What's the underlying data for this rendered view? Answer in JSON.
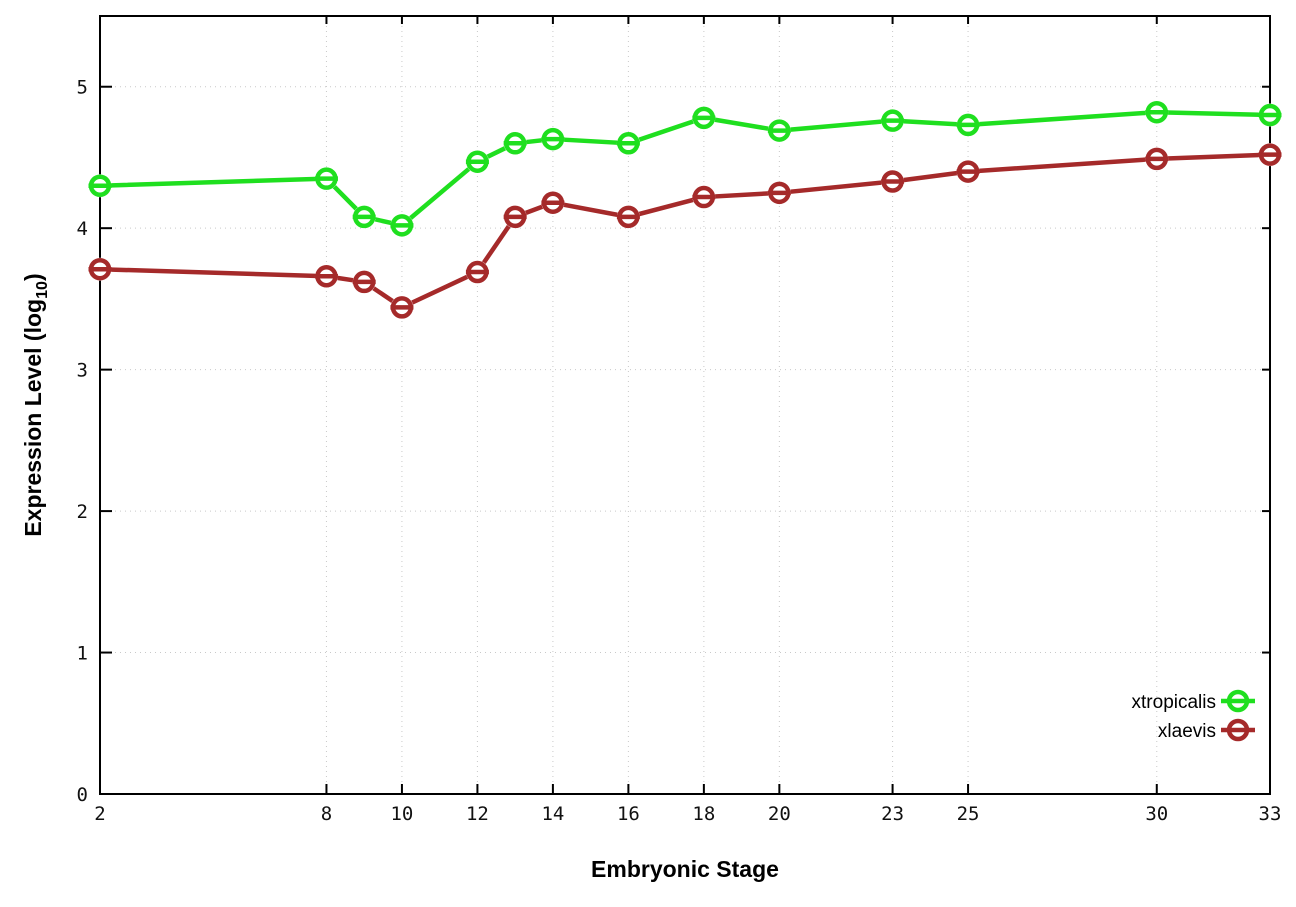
{
  "chart_data": {
    "type": "line",
    "x": [
      2,
      8,
      9,
      10,
      12,
      13,
      14,
      16,
      18,
      20,
      23,
      25,
      30,
      33
    ],
    "series": [
      {
        "name": "xtropicalis",
        "color": "#1fdf1f",
        "values": [
          4.3,
          4.35,
          4.08,
          4.02,
          4.47,
          4.6,
          4.63,
          4.6,
          4.78,
          4.69,
          4.76,
          4.73,
          4.82,
          4.8
        ]
      },
      {
        "name": "xlaevis",
        "color": "#a52a2a",
        "values": [
          3.71,
          3.66,
          3.62,
          3.44,
          3.69,
          4.08,
          4.18,
          4.08,
          4.22,
          4.25,
          4.33,
          4.4,
          4.49,
          4.52
        ]
      }
    ],
    "title": "",
    "xlabel": "Embryonic Stage",
    "ylabel": {
      "main": "Expression Level (log",
      "sub": "10",
      "close": ")"
    },
    "x_ticks": [
      2,
      8,
      10,
      12,
      14,
      16,
      18,
      20,
      23,
      25,
      30,
      33
    ],
    "y_ticks": [
      0,
      1,
      2,
      3,
      4,
      5
    ],
    "xlim": [
      2,
      33
    ],
    "ylim": [
      0,
      5.5
    ],
    "grid": true,
    "legend_position": "bottom-right",
    "grid_color": "#c9c9c9",
    "axis_color": "#000000",
    "background_color": "#ffffff",
    "marker": "open-circle-with-bar"
  }
}
